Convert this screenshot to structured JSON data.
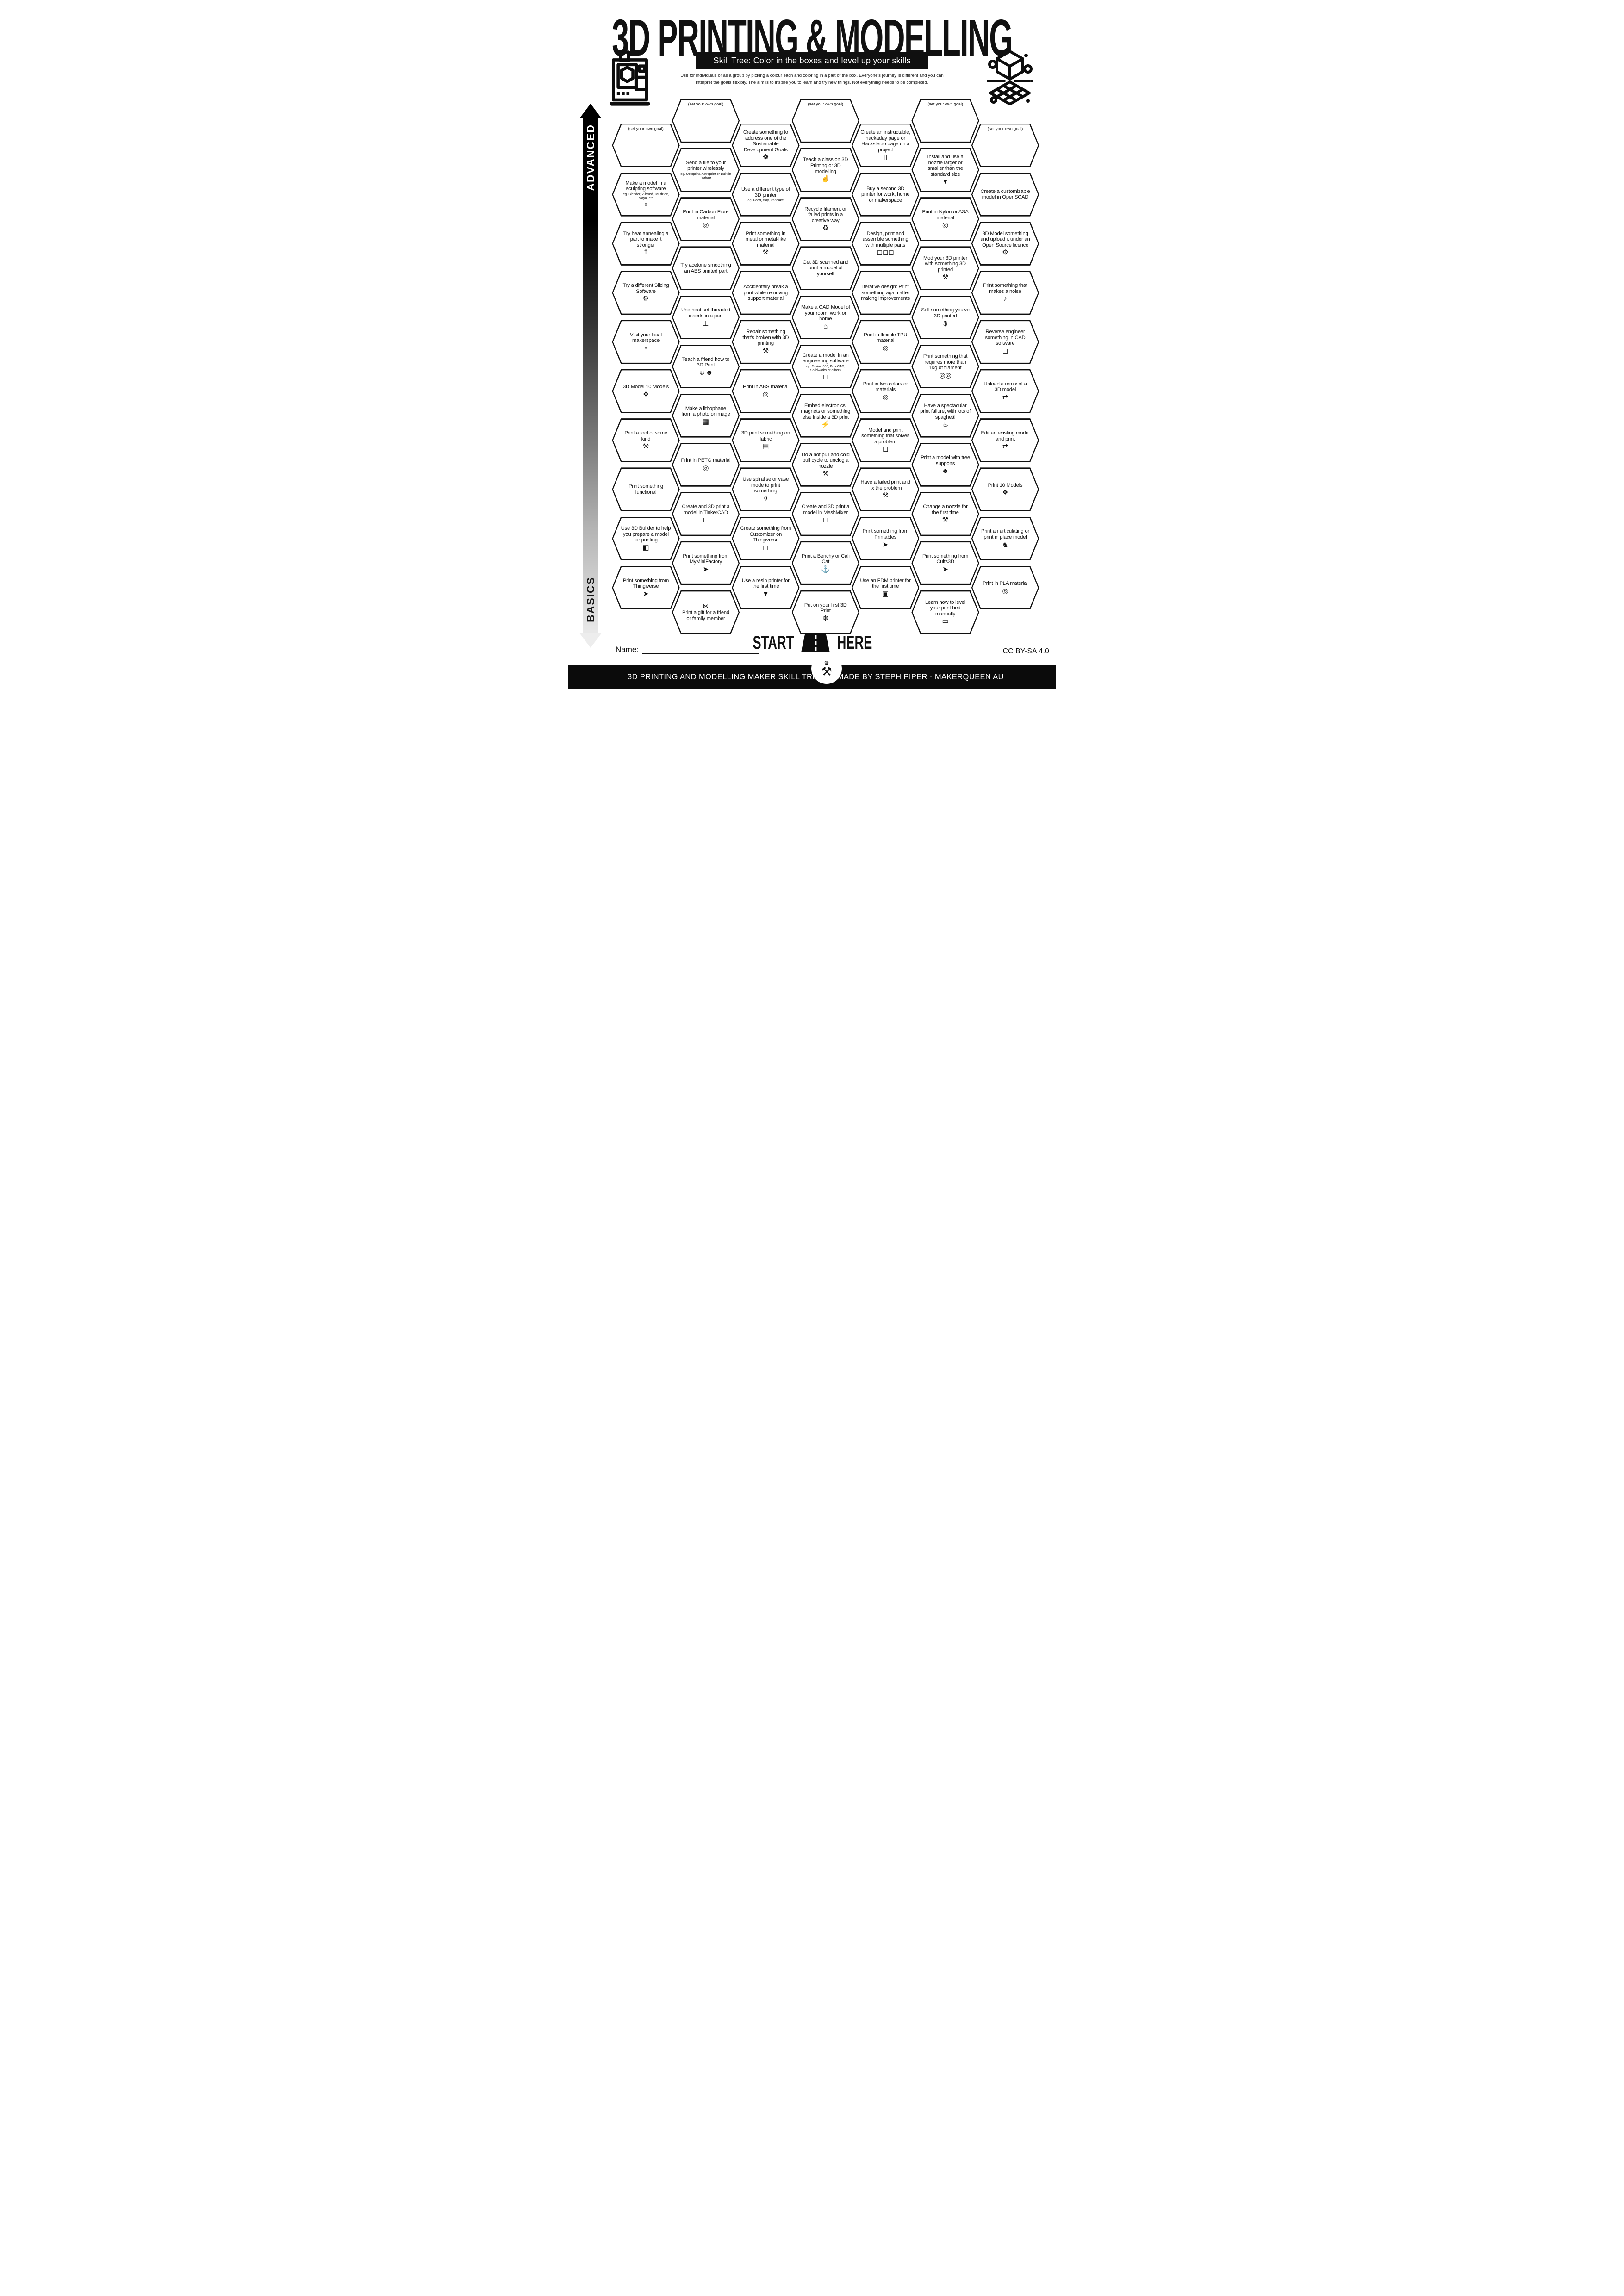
{
  "title": "3D PRINTING & MODELLING",
  "subtitle": "Skill Tree:  Color in the boxes and level up your skills",
  "description": {
    "line1": "Use for individuals or as a group by picking a colour each and coloring in a part of the box.  Everyone's journey is different and you can",
    "line2": "interpret the goals flexibly.  The aim is to inspire you to learn and try new things. Not everything needs to be completed."
  },
  "side_axis": {
    "top_label": "ADVANCED",
    "bottom_label": "BASICS"
  },
  "start_marker": {
    "left_word": "START",
    "right_word": "HERE"
  },
  "name_label": "Name:",
  "license": "CC BY-SA 4.0",
  "footer": {
    "left_text": "3D PRINTING AND MODELLING MAKER SKILL TREE",
    "credit_text": "MADE BY STEPH PIPER  -  MAKERQUEEN AU"
  },
  "colors": {
    "ink": "#101010",
    "paper": "#ffffff"
  },
  "icon_glyphs": {
    "statue-icon": "♀",
    "thermometer-up-icon": "↥",
    "laptop-gear-icon": "⚙",
    "location-pin-icon": "⌖",
    "cake-icon": "❖",
    "tools-icon": "⚒",
    "cursor-click-icon": "➤",
    "3d-builder-icon": "◧",
    "filament-spool-icon": "◎",
    "double-spool-icon": "◎◎",
    "threaded-insert-icon": "⊥",
    "friends-laptop-icon": "☺☻",
    "photo-icon": "▦",
    "cube-outline-icon": "◻",
    "cubes-icon": "◻◻◻",
    "sdg-wheel-icon": "☸",
    "anvil-icon": "⚒",
    "fabric-icon": "▤",
    "vase-icon": "⚱",
    "resin-drop-icon": "▼",
    "presenter-icon": "☝",
    "recycle-icon": "♻",
    "house-icon": "⌂",
    "led-icon": "⚡",
    "benchy-icon": "⚓",
    "party-popper-icon": "❋",
    "document-icon": "▯",
    "money-bag-icon": "$",
    "spaghetti-icon": "♨",
    "tree-icon": "♣",
    "ruler-icon": "▭",
    "nozzle-icon": "▼",
    "open-source-gear-icon": "⚙",
    "whistle-icon": "♪",
    "remix-arrows-icon": "⇄",
    "dragon-icon": "♞",
    "gift-bow-icon": "⋈",
    "fdm-printer-icon": "▣"
  },
  "columns": [
    {
      "hexes": [
        {
          "label": "(set your own goal)",
          "goal": true
        },
        {
          "label": "Make a model in a sculpting software",
          "sub": "eg. Blender, Z-brush, MudBox, Maya, etc",
          "icon": "statue-icon"
        },
        {
          "label": "Try heat annealing a part to make it stronger",
          "icon": "thermometer-up-icon"
        },
        {
          "label": "Try a different Slicing Software",
          "icon": "laptop-gear-icon"
        },
        {
          "label": "Visit your local makerspace",
          "icon": "location-pin-icon"
        },
        {
          "label": "3D Model 10 Models",
          "icon": "cake-icon"
        },
        {
          "label": "Print a tool of some kind",
          "icon": "tools-icon"
        },
        {
          "label": "Print something functional"
        },
        {
          "label": "Use 3D Builder to help you prepare a model for printing",
          "icon": "3d-builder-icon"
        },
        {
          "label": "Print something from Thingiverse",
          "icon": "cursor-click-icon"
        }
      ]
    },
    {
      "hexes": [
        {
          "label": "(set your own goal)",
          "goal": true
        },
        {
          "label": "Send a file to your printer wirelessly",
          "sub": "eg. Octoprint, Astroprint or Built-in feature"
        },
        {
          "label": "Print in Carbon Fibre material",
          "icon": "filament-spool-icon"
        },
        {
          "label": "Try acetone smoothing an ABS printed part"
        },
        {
          "label": "Use heat set threaded inserts in a part",
          "icon": "threaded-insert-icon"
        },
        {
          "label": "Teach a friend how to 3D Print",
          "icon": "friends-laptop-icon"
        },
        {
          "label": "Make a lithophane from a photo or image",
          "icon": "photo-icon"
        },
        {
          "label": "Print in PETG material",
          "icon": "filament-spool-icon"
        },
        {
          "label": "Create and 3D print a model in TinkerCAD",
          "icon": "cube-outline-icon"
        },
        {
          "label": "Print something from MyMiniFactory",
          "icon": "cursor-click-icon"
        },
        {
          "label": "Print a gift for a friend or family member",
          "icon": "gift-bow-icon",
          "icon_pos": "top"
        }
      ]
    },
    {
      "hexes": [
        {
          "label": "Create something to address one of the Sustainable Development Goals",
          "icon": "sdg-wheel-icon"
        },
        {
          "label": "Use a different type of 3D printer",
          "sub": "eg. Food, clay, Pancake"
        },
        {
          "label": "Print something in metal or metal-like material",
          "icon": "anvil-icon"
        },
        {
          "label": "Accidentally break a print while removing support material"
        },
        {
          "label": "Repair something that's broken with 3D printing",
          "icon": "tools-icon"
        },
        {
          "label": "Print in ABS material",
          "icon": "filament-spool-icon"
        },
        {
          "label": "3D print something on fabric",
          "icon": "fabric-icon"
        },
        {
          "label": "Use spiralise or vase mode to print something",
          "icon": "vase-icon"
        },
        {
          "label": "Create something from Customizer on Thingiverse",
          "icon": "cube-outline-icon"
        },
        {
          "label": "Use a resin printer for the first time",
          "icon": "resin-drop-icon"
        }
      ]
    },
    {
      "hexes": [
        {
          "label": "(set your own goal)",
          "goal": true
        },
        {
          "label": "Teach a class on 3D Printing or 3D modelling",
          "icon": "presenter-icon"
        },
        {
          "label": "Recycle filament or failed prints in a creative way",
          "icon": "recycle-icon"
        },
        {
          "label": "Get 3D scanned and print a model of yourself"
        },
        {
          "label": "Make a CAD Model of your room, work or home",
          "icon": "house-icon"
        },
        {
          "label": "Create a model in an engineering software",
          "sub": "eg. Fusion 360, FreeCAD, Solidworks or others",
          "icon": "cube-outline-icon"
        },
        {
          "label": "Embed electronics, magnets or something else inside a 3D print",
          "icon": "led-icon"
        },
        {
          "label": "Do a hot pull and cold pull cycle to unclog a nozzle",
          "icon": "tools-icon"
        },
        {
          "label": "Create and 3D print a model in MeshMixer",
          "icon": "cube-outline-icon"
        },
        {
          "label": "Print a Benchy or Cali Cat",
          "icon": "benchy-icon"
        },
        {
          "label": "Put on your first 3D Print",
          "icon": "party-popper-icon"
        }
      ]
    },
    {
      "hexes": [
        {
          "label": "Create an instructable, hackaday page or Hackster.io page on a project",
          "icon": "document-icon"
        },
        {
          "label": "Buy a second 3D printer for work, home or makerspace"
        },
        {
          "label": "Design, print and assemble something with multiple parts",
          "icon": "cubes-icon"
        },
        {
          "label": "Iterative design: Print something again after making improvements"
        },
        {
          "label": "Print in flexible TPU material",
          "icon": "filament-spool-icon"
        },
        {
          "label": "Print in two colors or materials",
          "icon": "filament-spool-icon"
        },
        {
          "label": "Model and print something that solves a problem",
          "icon": "cube-outline-icon"
        },
        {
          "label": "Have a failed print and fix the problem",
          "icon": "tools-icon"
        },
        {
          "label": "Print something from Printables",
          "icon": "cursor-click-icon"
        },
        {
          "label": "Use an FDM printer for the first time",
          "icon": "fdm-printer-icon"
        }
      ]
    },
    {
      "hexes": [
        {
          "label": "(set your own goal)",
          "goal": true
        },
        {
          "label": "Install and use a nozzle larger or smaller than the standard size",
          "icon": "nozzle-icon"
        },
        {
          "label": "Print in Nylon or ASA material",
          "icon": "filament-spool-icon"
        },
        {
          "label": "Mod your 3D printer with something 3D printed",
          "icon": "tools-icon"
        },
        {
          "label": "Sell something you've 3D printed",
          "icon": "money-bag-icon"
        },
        {
          "label": "Print something that requires more than 1kg of filament",
          "icon": "double-spool-icon"
        },
        {
          "label": "Have a spectacular print failure, with lots of spaghetti",
          "icon": "spaghetti-icon"
        },
        {
          "label": "Print a model with tree supports",
          "icon": "tree-icon"
        },
        {
          "label": "Change a nozzle for the first time",
          "icon": "tools-icon"
        },
        {
          "label": "Print something from Cults3D",
          "icon": "cursor-click-icon"
        },
        {
          "label": "Learn how to level your print bed manually",
          "icon": "ruler-icon"
        }
      ]
    },
    {
      "hexes": [
        {
          "label": "(set your own goal)",
          "goal": true
        },
        {
          "label": "Create a customizable model in OpenSCAD"
        },
        {
          "label": "3D Model something and upload it under an Open Source licence",
          "icon": "open-source-gear-icon"
        },
        {
          "label": "Print something that makes a noise",
          "icon": "whistle-icon"
        },
        {
          "label": "Reverse engineer something in CAD software",
          "icon": "cube-outline-icon"
        },
        {
          "label": "Upload a remix of a 3D model",
          "icon": "remix-arrows-icon"
        },
        {
          "label": "Edit an existing model and print",
          "icon": "remix-arrows-icon"
        },
        {
          "label": "Print 10 Models",
          "icon": "cake-icon"
        },
        {
          "label": "Print an articulating or print in place model",
          "icon": "dragon-icon"
        },
        {
          "label": "Print in PLA material",
          "icon": "filament-spool-icon"
        }
      ]
    }
  ]
}
